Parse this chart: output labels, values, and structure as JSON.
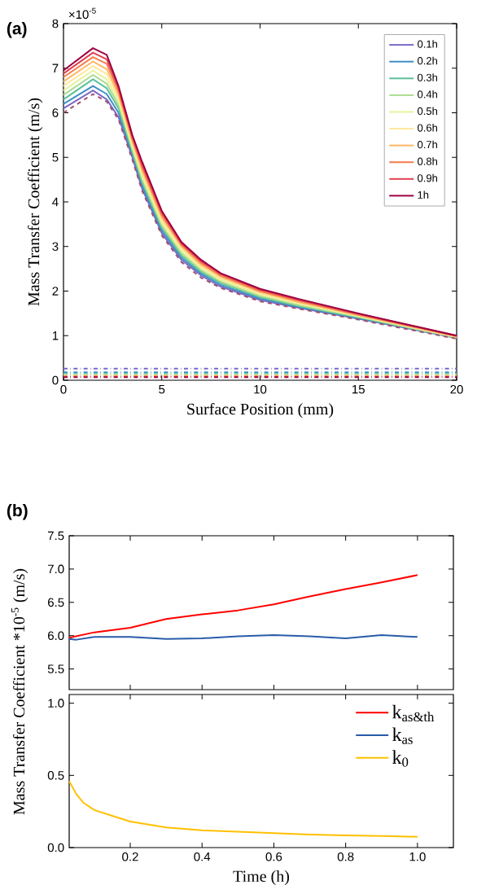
{
  "chart_data": [
    {
      "type": "line",
      "title": "(a)",
      "xlabel": "Surface Position (mm)",
      "ylabel": "Mass Transfer Coefficient (m/s)",
      "annotations": [
        "×10$^{-5}$"
      ],
      "xlim": [
        0,
        20
      ],
      "ylim": [
        0,
        8
      ],
      "xticks": [
        0,
        5,
        10,
        15,
        20
      ],
      "yticks": [
        0,
        1,
        2,
        3,
        4,
        5,
        6,
        7,
        8
      ],
      "legend": "top right",
      "grid": false,
      "series": [
        {
          "name": "0.1h",
          "color": "#7b68c8",
          "x": [
            0,
            1.5,
            2.2,
            2.8,
            3.5,
            4,
            5,
            6,
            7,
            8,
            10,
            12,
            15,
            20
          ],
          "values": [
            6.1,
            6.5,
            6.3,
            5.9,
            5.0,
            4.3,
            3.3,
            2.7,
            2.35,
            2.1,
            1.8,
            1.62,
            1.38,
            0.95
          ]
        },
        {
          "name": "0.2h",
          "color": "#3d8fc4",
          "x": [
            0,
            1.5,
            2.2,
            2.8,
            3.5,
            4,
            5,
            6,
            7,
            8,
            10,
            12,
            15,
            20
          ],
          "values": [
            6.2,
            6.6,
            6.42,
            6.0,
            5.07,
            4.37,
            3.36,
            2.75,
            2.39,
            2.14,
            1.83,
            1.64,
            1.39,
            0.95
          ]
        },
        {
          "name": "0.3h",
          "color": "#5cc09a",
          "x": [
            0,
            1.5,
            2.2,
            2.8,
            3.5,
            4,
            5,
            6,
            7,
            8,
            10,
            12,
            15,
            20
          ],
          "values": [
            6.3,
            6.75,
            6.55,
            6.1,
            5.13,
            4.44,
            3.42,
            2.8,
            2.43,
            2.18,
            1.86,
            1.66,
            1.41,
            0.96
          ]
        },
        {
          "name": "0.4h",
          "color": "#a8dc8e",
          "x": [
            0,
            1.5,
            2.2,
            2.8,
            3.5,
            4,
            5,
            6,
            7,
            8,
            10,
            12,
            15,
            20
          ],
          "values": [
            6.4,
            6.85,
            6.65,
            6.18,
            5.18,
            4.5,
            3.47,
            2.85,
            2.47,
            2.21,
            1.89,
            1.68,
            1.42,
            0.96
          ]
        },
        {
          "name": "0.5h",
          "color": "#e6f29a",
          "x": [
            0,
            1.5,
            2.2,
            2.8,
            3.5,
            4,
            5,
            6,
            7,
            8,
            10,
            12,
            15,
            20
          ],
          "values": [
            6.5,
            6.95,
            6.75,
            6.26,
            5.24,
            4.57,
            3.53,
            2.9,
            2.51,
            2.25,
            1.92,
            1.71,
            1.44,
            0.97
          ]
        },
        {
          "name": "0.6h",
          "color": "#fde89a",
          "x": [
            0,
            1.5,
            2.2,
            2.8,
            3.5,
            4,
            5,
            6,
            7,
            8,
            10,
            12,
            15,
            20
          ],
          "values": [
            6.6,
            7.05,
            6.87,
            6.33,
            5.3,
            4.64,
            3.59,
            2.95,
            2.55,
            2.28,
            1.95,
            1.73,
            1.45,
            0.97
          ]
        },
        {
          "name": "0.7h",
          "color": "#fdb766",
          "x": [
            0,
            1.5,
            2.2,
            2.8,
            3.5,
            4,
            5,
            6,
            7,
            8,
            10,
            12,
            15,
            20
          ],
          "values": [
            6.7,
            7.15,
            6.98,
            6.41,
            5.36,
            4.71,
            3.65,
            3.0,
            2.59,
            2.32,
            1.98,
            1.75,
            1.46,
            0.98
          ]
        },
        {
          "name": "0.8h",
          "color": "#f67c4a",
          "x": [
            0,
            1.5,
            2.2,
            2.8,
            3.5,
            4,
            5,
            6,
            7,
            8,
            10,
            12,
            15,
            20
          ],
          "values": [
            6.8,
            7.25,
            7.1,
            6.48,
            5.42,
            4.78,
            3.71,
            3.04,
            2.63,
            2.35,
            2.0,
            1.78,
            1.47,
            0.99
          ]
        },
        {
          "name": "0.9h",
          "color": "#e04050",
          "x": [
            0,
            1.5,
            2.2,
            2.8,
            3.5,
            4,
            5,
            6,
            7,
            8,
            10,
            12,
            15,
            20
          ],
          "values": [
            6.88,
            7.35,
            7.2,
            6.55,
            5.47,
            4.84,
            3.76,
            3.07,
            2.67,
            2.38,
            2.03,
            1.8,
            1.49,
            1.0
          ]
        },
        {
          "name": "1h",
          "color": "#9e0142",
          "x": [
            0,
            1.5,
            2.2,
            2.8,
            3.5,
            4,
            5,
            6,
            7,
            8,
            10,
            12,
            15,
            20
          ],
          "values": [
            6.95,
            7.45,
            7.3,
            6.6,
            5.5,
            4.9,
            3.8,
            3.1,
            2.7,
            2.4,
            2.05,
            1.82,
            1.5,
            1.0
          ]
        },
        {
          "color": "#a05070",
          "line_style": "dashed",
          "x": [
            0,
            1.5,
            2.2,
            2.8,
            3.5,
            4,
            5,
            6,
            7,
            8,
            10,
            12,
            15,
            20
          ],
          "values": [
            6.0,
            6.42,
            6.25,
            5.85,
            4.95,
            4.25,
            3.25,
            2.65,
            2.3,
            2.07,
            1.77,
            1.6,
            1.36,
            0.93
          ]
        },
        {
          "color": "#7b68c8",
          "line_style": "dashdot",
          "x": [
            0,
            20
          ],
          "values": [
            0.26,
            0.26
          ]
        },
        {
          "color": "#3d8fc4",
          "line_style": "dashdot",
          "x": [
            0,
            20
          ],
          "values": [
            0.18,
            0.18
          ]
        },
        {
          "color": "#5cc09a",
          "line_style": "dashdot",
          "x": [
            0,
            20
          ],
          "values": [
            0.14,
            0.14
          ]
        },
        {
          "color": "#a8dc8e",
          "line_style": "dashdot",
          "x": [
            0,
            20
          ],
          "values": [
            0.12,
            0.12
          ]
        },
        {
          "color": "#e6f29a",
          "line_style": "dashdot",
          "x": [
            0,
            20
          ],
          "values": [
            0.11,
            0.11
          ]
        },
        {
          "color": "#f67c4a",
          "line_style": "dashdot",
          "x": [
            0,
            20
          ],
          "values": [
            0.09,
            0.09
          ]
        },
        {
          "color": "#9e0142",
          "line_style": "dashdot",
          "x": [
            0,
            20
          ],
          "values": [
            0.07,
            0.07
          ]
        }
      ]
    },
    {
      "type": "line",
      "title": "(b)",
      "ylabel": "Mass Transfer Coefficient *10$^{-5}$ (m/s)",
      "xlim": [
        0.03,
        1.1
      ],
      "ylim": [
        5.19,
        7.5
      ],
      "xticks": [
        0.2,
        0.4,
        0.6,
        0.8,
        1.0
      ],
      "tick_labels": "y",
      "yticks": [
        {
          "value": 5.5,
          "label": "5.5"
        },
        {
          "value": 6.0,
          "label": "6.0"
        },
        {
          "value": 6.5,
          "label": "6.5"
        },
        {
          "value": 7.0,
          "label": "7.0"
        },
        {
          "value": 7.5,
          "label": "7.5"
        }
      ],
      "series": [
        {
          "name": "k$_{as&th}$",
          "color": "#ff0000",
          "x": [
            0.03,
            0.1,
            0.2,
            0.3,
            0.4,
            0.5,
            0.6,
            0.7,
            0.8,
            0.9,
            1.0
          ],
          "values": [
            5.97,
            6.05,
            6.12,
            6.25,
            6.32,
            6.38,
            6.47,
            6.59,
            6.7,
            6.8,
            6.91
          ]
        },
        {
          "name": "k$_{as}$",
          "color": "#2a5caa",
          "x": [
            0.03,
            0.05,
            0.1,
            0.2,
            0.3,
            0.4,
            0.5,
            0.6,
            0.7,
            0.8,
            0.9,
            1.0
          ],
          "values": [
            5.95,
            5.94,
            5.98,
            5.98,
            5.95,
            5.96,
            5.99,
            6.01,
            5.99,
            5.96,
            6.01,
            5.98
          ]
        }
      ]
    },
    {
      "type": "line",
      "xlabel": "Time (h)",
      "xlim": [
        0.03,
        1.1
      ],
      "ylim": [
        0,
        1.06
      ],
      "legend": "top right",
      "xticks": [
        {
          "value": 0.2,
          "label": "0.2"
        },
        {
          "value": 0.4,
          "label": "0.4"
        },
        {
          "value": 0.6,
          "label": "0.6"
        },
        {
          "value": 0.8,
          "label": "0.8"
        },
        {
          "value": 1.0,
          "label": "1.0"
        }
      ],
      "yticks": [
        {
          "value": 0,
          "label": "0.0"
        },
        {
          "value": 0.5,
          "label": "0.5"
        },
        {
          "value": 1.0,
          "label": "1.0"
        }
      ],
      "series": [
        {
          "name": "k$_{0}$",
          "color": "#ffc000",
          "x": [
            0.03,
            0.05,
            0.07,
            0.1,
            0.15,
            0.2,
            0.3,
            0.4,
            0.5,
            0.6,
            0.7,
            0.8,
            0.9,
            1.0
          ],
          "values": [
            0.46,
            0.37,
            0.31,
            0.26,
            0.22,
            0.18,
            0.14,
            0.12,
            0.11,
            0.1,
            0.09,
            0.085,
            0.08,
            0.075
          ]
        }
      ]
    }
  ]
}
